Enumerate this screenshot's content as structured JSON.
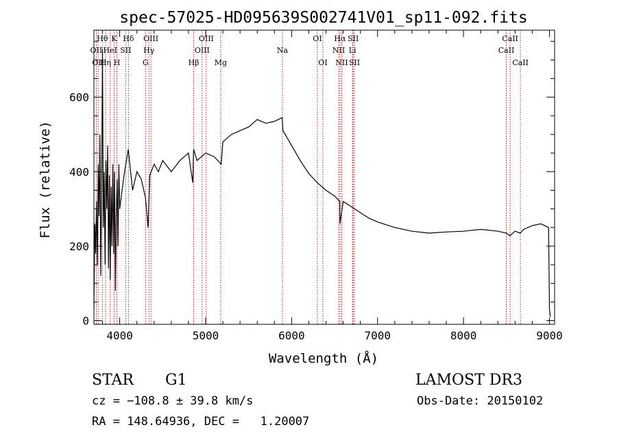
{
  "chart_data": {
    "type": "line",
    "title": "spec-57025-HD095639S002741V01_sp11-092.fits",
    "xlabel": "Wavelength (Å)",
    "ylabel": "Flux (relative)",
    "xlim": [
      3700,
      9060
    ],
    "ylim": [
      -10,
      780
    ],
    "xticks": [
      4000,
      5000,
      6000,
      7000,
      8000,
      9000
    ],
    "yticks": [
      0,
      200,
      400,
      600
    ],
    "x_minor_step": 200,
    "y_minor_step": 50,
    "colors": {
      "line": "#000000",
      "marker": "#cc0000",
      "axes": "#000000"
    },
    "series": [
      {
        "name": "flux",
        "x": [
          3700,
          3710,
          3720,
          3730,
          3740,
          3750,
          3760,
          3770,
          3780,
          3790,
          3800,
          3810,
          3820,
          3830,
          3840,
          3850,
          3860,
          3870,
          3880,
          3890,
          3900,
          3910,
          3920,
          3930,
          3940,
          3950,
          3960,
          3970,
          3980,
          3990,
          4000,
          4050,
          4100,
          4150,
          4200,
          4250,
          4300,
          4330,
          4350,
          4400,
          4450,
          4500,
          4600,
          4700,
          4800,
          4850,
          4860,
          4900,
          5000,
          5100,
          5180,
          5200,
          5300,
          5400,
          5500,
          5600,
          5700,
          5800,
          5890,
          5900,
          6000,
          6100,
          6200,
          6300,
          6400,
          6500,
          6560,
          6563,
          6600,
          6700,
          6800,
          6900,
          7000,
          7200,
          7400,
          7600,
          7800,
          8000,
          8200,
          8400,
          8500,
          8540,
          8600,
          8660,
          8700,
          8800,
          8900,
          8990,
          9000,
          9010
        ],
        "y": [
          30,
          260,
          180,
          320,
          150,
          420,
          280,
          500,
          120,
          380,
          730,
          250,
          400,
          150,
          430,
          300,
          470,
          140,
          390,
          110,
          360,
          200,
          420,
          180,
          400,
          80,
          290,
          380,
          200,
          420,
          300,
          390,
          460,
          350,
          400,
          380,
          330,
          250,
          390,
          420,
          400,
          430,
          400,
          430,
          450,
          370,
          460,
          430,
          450,
          440,
          420,
          480,
          500,
          510,
          520,
          540,
          530,
          535,
          545,
          510,
          470,
          430,
          395,
          370,
          350,
          335,
          320,
          260,
          320,
          305,
          290,
          275,
          265,
          250,
          240,
          235,
          238,
          240,
          245,
          240,
          235,
          228,
          240,
          235,
          245,
          255,
          260,
          250,
          30,
          10
        ]
      }
    ],
    "lines": [
      {
        "wl": 3727,
        "label": "OII",
        "row": 2
      },
      {
        "wl": 3750,
        "label": "OII",
        "row": 3
      },
      {
        "wl": 3798,
        "label": "Hθ",
        "row": 1
      },
      {
        "wl": 3835,
        "label": "Hη",
        "row": 3
      },
      {
        "wl": 3889,
        "label": "HeI",
        "row": 2
      },
      {
        "wl": 3934,
        "label": "K",
        "row": 1
      },
      {
        "wl": 3968,
        "label": "H",
        "row": 3
      },
      {
        "wl": 4070,
        "label": "SII",
        "row": 2
      },
      {
        "wl": 4102,
        "label": "Hδ",
        "row": 1
      },
      {
        "wl": 4300,
        "label": "G",
        "row": 3
      },
      {
        "wl": 4340,
        "label": "Hγ",
        "row": 2
      },
      {
        "wl": 4363,
        "label": "OIII",
        "row": 1
      },
      {
        "wl": 4861,
        "label": "Hβ",
        "row": 3
      },
      {
        "wl": 4959,
        "label": "OIII",
        "row": 2
      },
      {
        "wl": 5007,
        "label": "OIII",
        "row": 1
      },
      {
        "wl": 5175,
        "label": "Mg",
        "row": 3
      },
      {
        "wl": 5893,
        "label": "Na",
        "row": 2
      },
      {
        "wl": 6300,
        "label": "OI",
        "row": 1
      },
      {
        "wl": 6364,
        "label": "OI",
        "row": 3
      },
      {
        "wl": 6548,
        "label": "NII",
        "row": 2
      },
      {
        "wl": 6563,
        "label": "Hα",
        "row": 1
      },
      {
        "wl": 6583,
        "label": "NII",
        "row": 3
      },
      {
        "wl": 6708,
        "label": "Li",
        "row": 2
      },
      {
        "wl": 6716,
        "label": "SII",
        "row": 1
      },
      {
        "wl": 6731,
        "label": "SII",
        "row": 3
      },
      {
        "wl": 8498,
        "label": "CaII",
        "row": 2
      },
      {
        "wl": 8542,
        "label": "CaII",
        "row": 1
      },
      {
        "wl": 8662,
        "label": "CaII",
        "row": 3
      }
    ]
  },
  "info": {
    "object_type": "STAR",
    "subclass": "G1",
    "survey": "LAMOST DR3",
    "redshift": "cz = −108.8 ± 39.8 km/s",
    "obs_date": "Obs-Date: 20150102",
    "coords": "RA = 148.64936, DEC =   1.20007"
  }
}
